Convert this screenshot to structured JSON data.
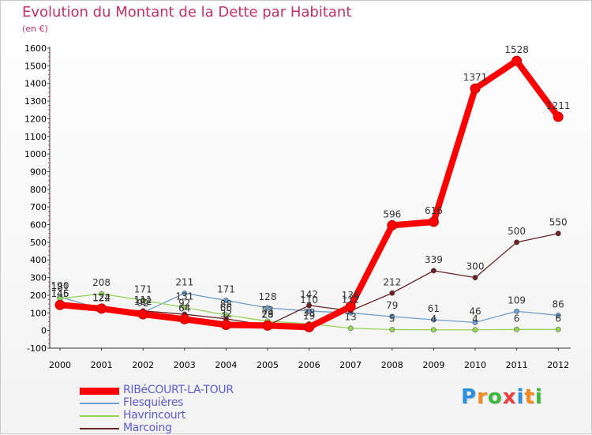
{
  "chart_data": {
    "type": "line",
    "title": "Evolution du Montant de la Dette par Habitant",
    "ylabel": "(en €)",
    "xlabel": "",
    "categories": [
      "2000",
      "2001",
      "2002",
      "2003",
      "2004",
      "2005",
      "2006",
      "2007",
      "2008",
      "2009",
      "2010",
      "2011",
      "2012"
    ],
    "ylim": [
      -100,
      1600
    ],
    "yticks": [
      "-100",
      "0",
      "100",
      "200",
      "300",
      "400",
      "500",
      "600",
      "700",
      "800",
      "900",
      "1000",
      "1100",
      "1200",
      "1300",
      "1400",
      "1500",
      "1600"
    ],
    "grid": false,
    "legend_position": "bottom-left",
    "series": [
      {
        "name": "RIBéCOURT-LA-TOUR",
        "color": "#ff0000",
        "values": [
          145,
          124,
          92,
          64,
          32,
          28,
          19,
          136,
          596,
          616,
          1371,
          1528,
          1211
        ]
      },
      {
        "name": "Flesquières",
        "color": "#6e9fcd",
        "values": [
          190,
          122,
          102,
          211,
          171,
          128,
          110,
          100,
          79,
          61,
          46,
          109,
          86
        ]
      },
      {
        "name": "Havrincourt",
        "color": "#95d35a",
        "values": [
          181,
          208,
          171,
          131,
          88,
          53,
          38,
          13,
          5,
          4,
          4,
          6,
          6
        ]
      },
      {
        "name": "Marcoing",
        "color": "#6b2226",
        "values": [
          146,
          124,
          111,
          92,
          66,
          29,
          142,
          112,
          212,
          339,
          300,
          500,
          550
        ]
      }
    ],
    "data_labels": [
      [
        "145",
        "124",
        "92",
        "64",
        "32",
        "28",
        "19",
        "136",
        "596",
        "616",
        "1371",
        "1528",
        "1211"
      ],
      [
        "190",
        "122",
        "102",
        "211",
        "171",
        "128",
        "110",
        "",
        "79",
        "61",
        "46",
        "109",
        "86"
      ],
      [
        "181",
        "208",
        "171",
        "131",
        "88",
        "53",
        "38",
        "13",
        "5",
        "4",
        "4",
        "6",
        "6"
      ],
      [
        "146",
        "124",
        "111",
        "92",
        "66",
        "29",
        "142",
        "112",
        "212",
        "339",
        "300",
        "500",
        "550"
      ]
    ]
  },
  "logo": {
    "letters": [
      "P",
      "r",
      "o",
      "x",
      "i",
      "t",
      "i"
    ],
    "colors": [
      "#2d8fe0",
      "#f08a1c",
      "#3dba3d",
      "#e84040",
      "#2d8fe0",
      "#f08a1c",
      "#3dba3d"
    ]
  }
}
